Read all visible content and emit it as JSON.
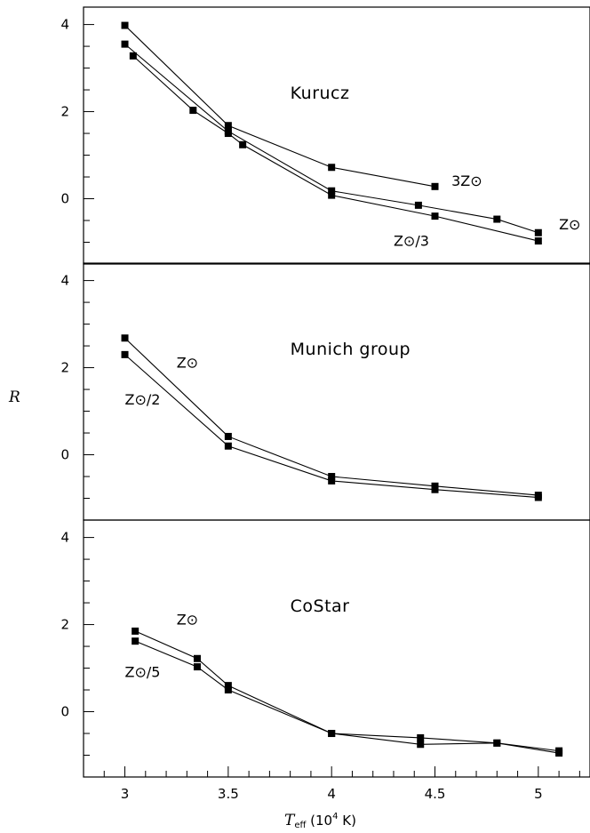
{
  "chart_data": {
    "type": "line",
    "x_label_symbol": "T",
    "x_label_subscript": "eff",
    "x_label_units": " (10",
    "x_label_exponent": "4",
    "x_label_tail": " K)",
    "y_label": "R",
    "xlim": [
      2.8,
      5.25
    ],
    "x_ticks": [
      "3",
      "3.5",
      "4",
      "4.5",
      "5"
    ],
    "panels": [
      {
        "title": "Kurucz",
        "ylim": [
          -1.5,
          4.4
        ],
        "y_ticks": [
          "0",
          "2",
          "4"
        ],
        "series": [
          {
            "name": "3Z⊙",
            "x": [
              3.0,
              3.5,
              4.0,
              4.5
            ],
            "y": [
              3.98,
              1.68,
              0.72,
              0.28
            ]
          },
          {
            "name": "Z⊙",
            "x": [
              3.0,
              3.5,
              4.0,
              4.42,
              4.8,
              5.0
            ],
            "y": [
              3.55,
              1.55,
              0.18,
              -0.15,
              -0.47,
              -0.78
            ]
          },
          {
            "name": "Z⊙/3",
            "x": [
              3.04,
              3.33,
              3.5,
              3.57,
              4.0,
              4.5,
              5.0
            ],
            "y": [
              3.28,
              2.03,
              1.5,
              1.24,
              0.08,
              -0.4,
              -0.97
            ]
          }
        ],
        "annotations": [
          {
            "text": "3Z⊙",
            "x": 4.58,
            "y": 0.3
          },
          {
            "text": "Z⊙",
            "x": 5.1,
            "y": -0.7
          },
          {
            "text": "Z⊙/3",
            "x": 4.3,
            "y": -1.08
          }
        ]
      },
      {
        "title": "Munich group",
        "ylim": [
          -1.5,
          4.4
        ],
        "y_ticks": [
          "0",
          "2",
          "4"
        ],
        "series": [
          {
            "name": "Z⊙",
            "x": [
              3.0,
              3.5,
              4.0,
              4.5,
              5.0
            ],
            "y": [
              2.68,
              0.42,
              -0.5,
              -0.72,
              -0.93
            ]
          },
          {
            "name": "Z⊙/2",
            "x": [
              3.0,
              3.5,
              4.0,
              4.5,
              5.0
            ],
            "y": [
              2.3,
              0.2,
              -0.6,
              -0.8,
              -0.98
            ]
          }
        ],
        "annotations": [
          {
            "text": "Z⊙",
            "x": 3.25,
            "y": 2.0
          },
          {
            "text": "Z⊙/2",
            "x": 3.0,
            "y": 1.15
          }
        ]
      },
      {
        "title": "CoStar",
        "ylim": [
          -1.5,
          4.4
        ],
        "y_ticks": [
          "0",
          "2",
          "4"
        ],
        "series": [
          {
            "name": "Z⊙",
            "x": [
              3.05,
              3.35,
              3.5,
              4.0,
              4.43,
              4.8,
              5.1
            ],
            "y": [
              1.85,
              1.22,
              0.6,
              -0.5,
              -0.6,
              -0.72,
              -0.9
            ]
          },
          {
            "name": "Z⊙/5",
            "x": [
              3.05,
              3.35,
              3.5,
              4.0,
              4.43,
              4.8,
              5.1
            ],
            "y": [
              1.62,
              1.03,
              0.5,
              -0.5,
              -0.75,
              -0.72,
              -0.95
            ]
          }
        ],
        "annotations": [
          {
            "text": "Z⊙",
            "x": 3.25,
            "y": 2.0
          },
          {
            "text": "Z⊙/5",
            "x": 3.0,
            "y": 0.8
          }
        ]
      }
    ]
  }
}
